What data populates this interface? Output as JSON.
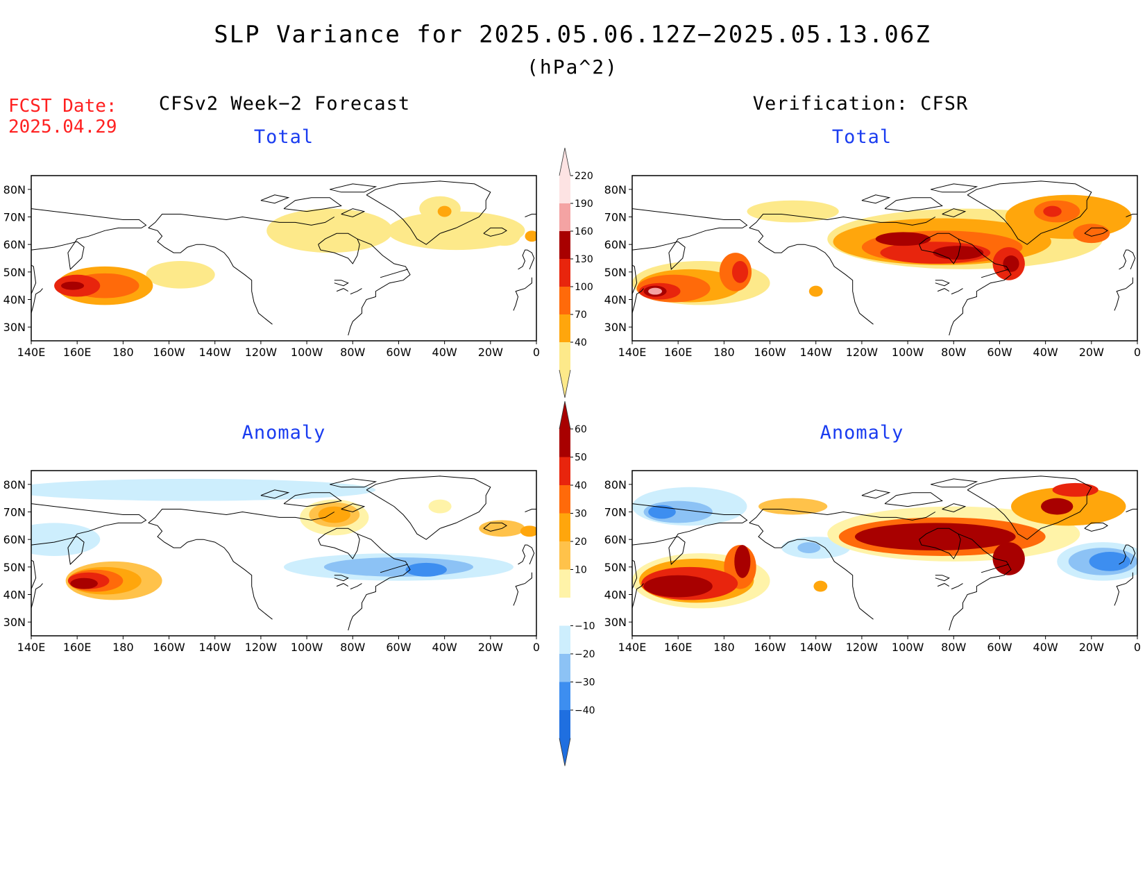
{
  "header": {
    "title": "SLP Variance for 2025.05.06.12Z−2025.05.13.06Z",
    "units": "(hPa^2)",
    "fcst_label": "FCST Date:",
    "fcst_date": "2025.04.29"
  },
  "columns": {
    "left_title": "CFSv2 Week−2 Forecast",
    "right_title": "Verification: CFSR"
  },
  "panels": [
    {
      "id": "forecast-total",
      "subtitle": "Total",
      "kind": "total"
    },
    {
      "id": "verification-total",
      "subtitle": "Total",
      "kind": "total"
    },
    {
      "id": "forecast-anomaly",
      "subtitle": "Anomaly",
      "kind": "anomaly"
    },
    {
      "id": "verification-anomaly",
      "subtitle": "Anomaly",
      "kind": "anomaly"
    }
  ],
  "axes": {
    "lon_labels": [
      "140E",
      "160E",
      "180",
      "160W",
      "140W",
      "120W",
      "100W",
      "80W",
      "60W",
      "40W",
      "20W",
      "0"
    ],
    "lat_labels": [
      "30N",
      "40N",
      "50N",
      "60N",
      "70N",
      "80N"
    ],
    "lon_range": [
      140,
      360
    ],
    "lat_range": [
      25,
      85
    ]
  },
  "colorbars": {
    "total": {
      "levels": [
        "40",
        "70",
        "100",
        "130",
        "160",
        "190",
        "220"
      ],
      "colors": [
        "#fde98a",
        "#ffa60c",
        "#ff6a0a",
        "#e8250d",
        "#a80000",
        "#f4a3a3",
        "#fde3e3"
      ]
    },
    "anomaly": {
      "levels": [
        "−40",
        "−30",
        "−20",
        "−10",
        "10",
        "20",
        "30",
        "40",
        "50",
        "60"
      ],
      "colors": [
        "#1f6fe0",
        "#3d8ef0",
        "#8cc2f5",
        "#cdeefd",
        "#ffffff",
        "#fff3a8",
        "#ffc24a",
        "#ffa60c",
        "#ff6a0a",
        "#e8250d",
        "#a80000"
      ]
    }
  },
  "fields": {
    "forecast-total": [
      {
        "lon": 172,
        "lat": 45,
        "w": 42,
        "h": 14,
        "level": 2
      },
      {
        "lon": 172,
        "lat": 45,
        "w": 30,
        "h": 9,
        "level": 3
      },
      {
        "lon": 160,
        "lat": 45,
        "w": 20,
        "h": 8,
        "level": 4
      },
      {
        "lon": 158,
        "lat": 45,
        "w": 10,
        "h": 3,
        "level": 5
      },
      {
        "lon": 205,
        "lat": 49,
        "w": 30,
        "h": 10,
        "level": 1
      },
      {
        "lon": 270,
        "lat": 65,
        "w": 55,
        "h": 16,
        "level": 1
      },
      {
        "lon": 325,
        "lat": 65,
        "w": 60,
        "h": 14,
        "level": 1
      },
      {
        "lon": 318,
        "lat": 73,
        "w": 18,
        "h": 9,
        "level": 1
      },
      {
        "lon": 320,
        "lat": 72,
        "w": 6,
        "h": 4,
        "level": 2
      },
      {
        "lon": 346,
        "lat": 63,
        "w": 14,
        "h": 7,
        "level": 1
      },
      {
        "lon": 358,
        "lat": 63,
        "w": 6,
        "h": 4,
        "level": 2
      }
    ],
    "verification-total": [
      {
        "lon": 170,
        "lat": 46,
        "w": 60,
        "h": 16,
        "level": 1
      },
      {
        "lon": 165,
        "lat": 45,
        "w": 45,
        "h": 12,
        "level": 2
      },
      {
        "lon": 158,
        "lat": 44,
        "w": 32,
        "h": 10,
        "level": 3
      },
      {
        "lon": 152,
        "lat": 43,
        "w": 18,
        "h": 6,
        "level": 4
      },
      {
        "lon": 150,
        "lat": 43,
        "w": 10,
        "h": 4,
        "level": 5
      },
      {
        "lon": 150,
        "lat": 43,
        "w": 6,
        "h": 2.5,
        "level": 6
      },
      {
        "lon": 185,
        "lat": 50,
        "w": 14,
        "h": 14,
        "level": 3
      },
      {
        "lon": 187,
        "lat": 50,
        "w": 7,
        "h": 8,
        "level": 4
      },
      {
        "lon": 285,
        "lat": 62,
        "w": 120,
        "h": 22,
        "level": 1
      },
      {
        "lon": 275,
        "lat": 61,
        "w": 95,
        "h": 17,
        "level": 2
      },
      {
        "lon": 275,
        "lat": 59,
        "w": 70,
        "h": 12,
        "level": 3
      },
      {
        "lon": 272,
        "lat": 57,
        "w": 48,
        "h": 8,
        "level": 4
      },
      {
        "lon": 258,
        "lat": 62,
        "w": 24,
        "h": 5,
        "level": 5
      },
      {
        "lon": 282,
        "lat": 57,
        "w": 22,
        "h": 5,
        "level": 5
      },
      {
        "lon": 304,
        "lat": 53,
        "w": 14,
        "h": 12,
        "level": 4
      },
      {
        "lon": 305,
        "lat": 53,
        "w": 7,
        "h": 6,
        "level": 5
      },
      {
        "lon": 330,
        "lat": 70,
        "w": 55,
        "h": 16,
        "level": 2
      },
      {
        "lon": 325,
        "lat": 72,
        "w": 20,
        "h": 8,
        "level": 3
      },
      {
        "lon": 323,
        "lat": 72,
        "w": 8,
        "h": 4,
        "level": 4
      },
      {
        "lon": 340,
        "lat": 64,
        "w": 16,
        "h": 7,
        "level": 3
      },
      {
        "lon": 210,
        "lat": 72,
        "w": 40,
        "h": 8,
        "level": 1
      },
      {
        "lon": 220,
        "lat": 43,
        "w": 6,
        "h": 4,
        "level": 2
      }
    ],
    "forecast-anomaly": [
      {
        "lon": 210,
        "lat": 78,
        "w": 160,
        "h": 8,
        "level": -1
      },
      {
        "lon": 150,
        "lat": 60,
        "w": 40,
        "h": 12,
        "level": -1
      },
      {
        "lon": 300,
        "lat": 50,
        "w": 100,
        "h": 10,
        "level": -1
      },
      {
        "lon": 300,
        "lat": 50,
        "w": 65,
        "h": 7,
        "level": -2
      },
      {
        "lon": 312,
        "lat": 49,
        "w": 18,
        "h": 5,
        "level": -3
      },
      {
        "lon": 176,
        "lat": 45,
        "w": 42,
        "h": 14,
        "level": 2
      },
      {
        "lon": 172,
        "lat": 45,
        "w": 32,
        "h": 10,
        "level": 3
      },
      {
        "lon": 168,
        "lat": 45,
        "w": 24,
        "h": 8,
        "level": 4
      },
      {
        "lon": 165,
        "lat": 45,
        "w": 18,
        "h": 6,
        "level": 5
      },
      {
        "lon": 163,
        "lat": 44,
        "w": 12,
        "h": 4,
        "level": 6
      },
      {
        "lon": 272,
        "lat": 68,
        "w": 30,
        "h": 13,
        "level": 1
      },
      {
        "lon": 272,
        "lat": 69,
        "w": 22,
        "h": 9,
        "level": 2
      },
      {
        "lon": 272,
        "lat": 69,
        "w": 14,
        "h": 6,
        "level": 3
      },
      {
        "lon": 318,
        "lat": 72,
        "w": 10,
        "h": 5,
        "level": 1
      },
      {
        "lon": 345,
        "lat": 64,
        "w": 20,
        "h": 6,
        "level": 2
      },
      {
        "lon": 357,
        "lat": 63,
        "w": 8,
        "h": 4,
        "level": 3
      }
    ],
    "verification-anomaly": [
      {
        "lon": 165,
        "lat": 72,
        "w": 50,
        "h": 14,
        "level": -1
      },
      {
        "lon": 160,
        "lat": 70,
        "w": 30,
        "h": 8,
        "level": -2
      },
      {
        "lon": 153,
        "lat": 70,
        "w": 12,
        "h": 5,
        "level": -3
      },
      {
        "lon": 220,
        "lat": 57,
        "w": 30,
        "h": 8,
        "level": -1
      },
      {
        "lon": 217,
        "lat": 57,
        "w": 10,
        "h": 4,
        "level": -2
      },
      {
        "lon": 345,
        "lat": 52,
        "w": 40,
        "h": 14,
        "level": -1
      },
      {
        "lon": 345,
        "lat": 52,
        "w": 30,
        "h": 10,
        "level": -2
      },
      {
        "lon": 348,
        "lat": 52,
        "w": 18,
        "h": 7,
        "level": -3
      },
      {
        "lon": 170,
        "lat": 45,
        "w": 60,
        "h": 20,
        "level": 1
      },
      {
        "lon": 168,
        "lat": 45,
        "w": 50,
        "h": 16,
        "level": 3
      },
      {
        "lon": 165,
        "lat": 44,
        "w": 42,
        "h": 12,
        "level": 5
      },
      {
        "lon": 160,
        "lat": 43,
        "w": 30,
        "h": 8,
        "level": 6
      },
      {
        "lon": 187,
        "lat": 50,
        "w": 14,
        "h": 16,
        "level": 4
      },
      {
        "lon": 188,
        "lat": 52,
        "w": 7,
        "h": 12,
        "level": 6
      },
      {
        "lon": 280,
        "lat": 62,
        "w": 110,
        "h": 20,
        "level": 1
      },
      {
        "lon": 275,
        "lat": 61,
        "w": 90,
        "h": 14,
        "level": 4
      },
      {
        "lon": 272,
        "lat": 61,
        "w": 70,
        "h": 10,
        "level": 6
      },
      {
        "lon": 304,
        "lat": 53,
        "w": 14,
        "h": 12,
        "level": 6
      },
      {
        "lon": 330,
        "lat": 72,
        "w": 50,
        "h": 14,
        "level": 3
      },
      {
        "lon": 325,
        "lat": 72,
        "w": 14,
        "h": 6,
        "level": 6
      },
      {
        "lon": 333,
        "lat": 78,
        "w": 20,
        "h": 5,
        "level": 5
      },
      {
        "lon": 210,
        "lat": 72,
        "w": 30,
        "h": 6,
        "level": 2
      },
      {
        "lon": 222,
        "lat": 43,
        "w": 6,
        "h": 4,
        "level": 3
      }
    ]
  }
}
